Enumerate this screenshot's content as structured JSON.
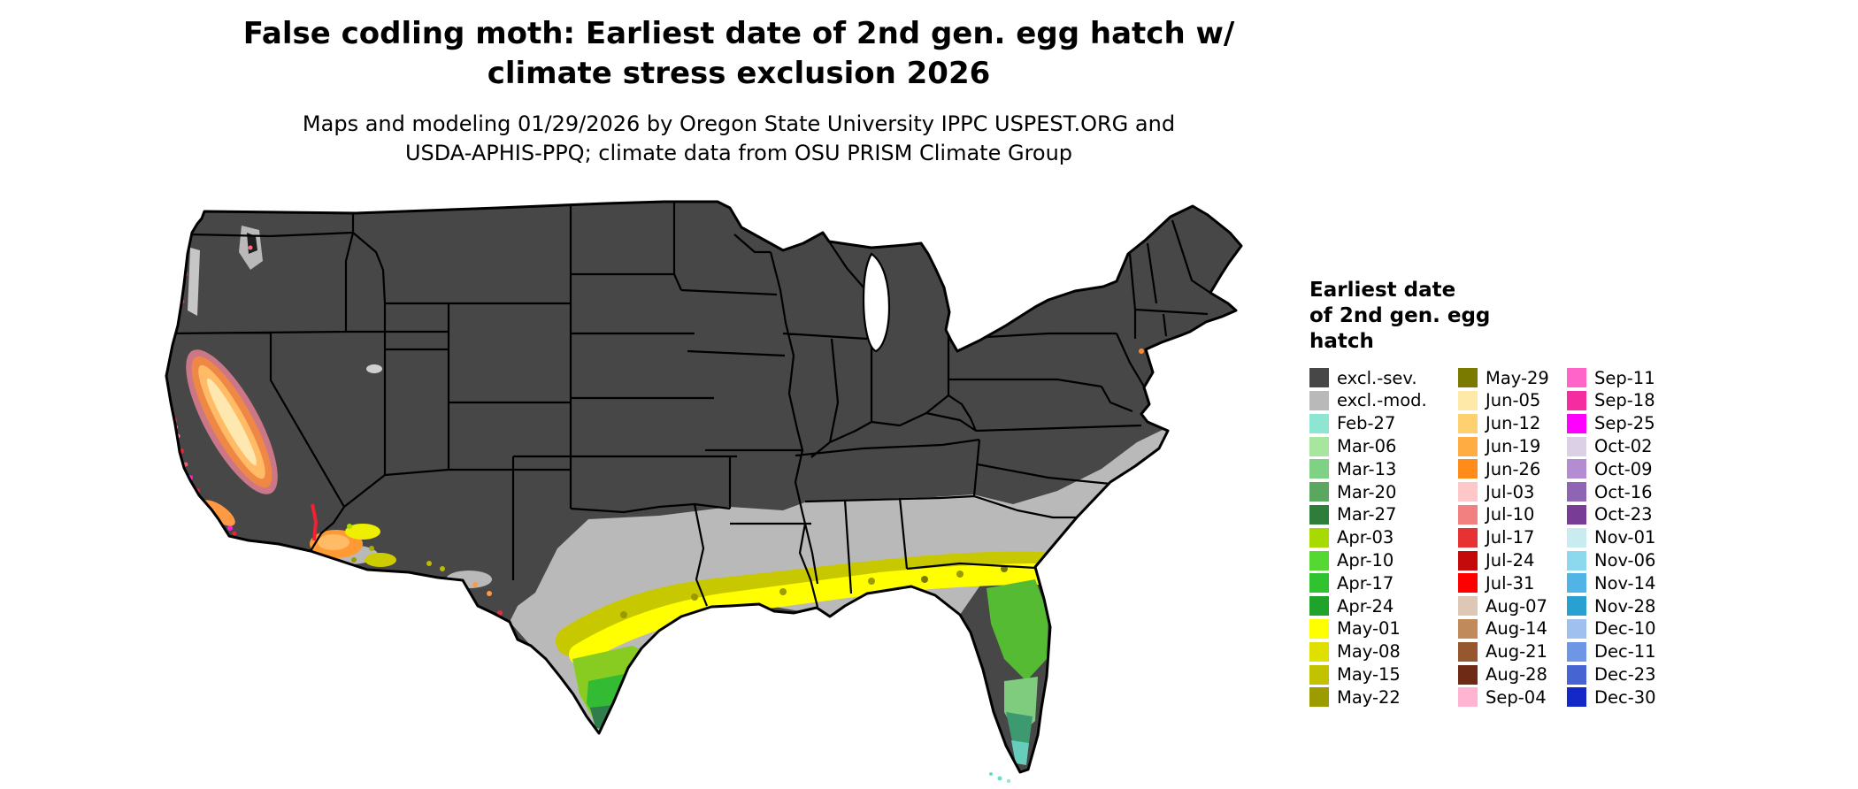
{
  "title": {
    "line1": "False codling moth: Earliest date of 2nd gen. egg hatch w/",
    "line2": "climate stress exclusion 2026"
  },
  "subtitle": {
    "line1": "Maps and modeling 01/29/2026 by Oregon State University IPPC USPEST.ORG and",
    "line2": "USDA-APHIS-PPQ; climate data from OSU PRISM Climate Group"
  },
  "map": {
    "name": "Contiguous United States earliest egg-hatch choropleth",
    "colors": {
      "excl_sev": "#474747",
      "excl_mod": "#b9b9b9",
      "water": "#ffffff",
      "border": "#000000"
    }
  },
  "legend": {
    "title_lines": [
      "Earliest date",
      "of 2nd gen. egg",
      "hatch"
    ],
    "columns": [
      {
        "items": [
          {
            "label": "excl.-sev.",
            "color": "#474747"
          },
          {
            "label": "excl.-mod.",
            "color": "#b9b9b9"
          },
          {
            "label": "Feb-27",
            "color": "#8ee6d2"
          },
          {
            "label": "Mar-06",
            "color": "#a8e6a0"
          },
          {
            "label": "Mar-13",
            "color": "#7fd184"
          },
          {
            "label": "Mar-20",
            "color": "#5aa85f"
          },
          {
            "label": "Mar-27",
            "color": "#2f7d3b"
          },
          {
            "label": "Apr-03",
            "color": "#a8d900"
          },
          {
            "label": "Apr-10",
            "color": "#55d932"
          },
          {
            "label": "Apr-17",
            "color": "#2fc42f"
          },
          {
            "label": "Apr-24",
            "color": "#1fa32a"
          },
          {
            "label": "May-01",
            "color": "#ffff00"
          },
          {
            "label": "May-08",
            "color": "#e0e000"
          },
          {
            "label": "May-15",
            "color": "#c2c200"
          },
          {
            "label": "May-22",
            "color": "#9c9c00"
          }
        ]
      },
      {
        "items": [
          {
            "label": "May-29",
            "color": "#7a7a00"
          },
          {
            "label": "Jun-05",
            "color": "#ffe9a8"
          },
          {
            "label": "Jun-12",
            "color": "#ffd070"
          },
          {
            "label": "Jun-19",
            "color": "#ffad42"
          },
          {
            "label": "Jun-26",
            "color": "#ff8c1a"
          },
          {
            "label": "Jul-03",
            "color": "#ffc8c8"
          },
          {
            "label": "Jul-10",
            "color": "#f28080"
          },
          {
            "label": "Jul-17",
            "color": "#e63232"
          },
          {
            "label": "Jul-24",
            "color": "#c40a0a"
          },
          {
            "label": "Jul-31",
            "color": "#ff0000"
          },
          {
            "label": "Aug-07",
            "color": "#dcc8b4"
          },
          {
            "label": "Aug-14",
            "color": "#c08a5a"
          },
          {
            "label": "Aug-21",
            "color": "#96562e"
          },
          {
            "label": "Aug-28",
            "color": "#6e2a14"
          },
          {
            "label": "Sep-04",
            "color": "#ffb4d2"
          }
        ]
      },
      {
        "items": [
          {
            "label": "Sep-11",
            "color": "#ff64c8"
          },
          {
            "label": "Sep-18",
            "color": "#f52ba0"
          },
          {
            "label": "Sep-25",
            "color": "#ff00ff"
          },
          {
            "label": "Oct-02",
            "color": "#dcd0e6"
          },
          {
            "label": "Oct-09",
            "color": "#b48cd2"
          },
          {
            "label": "Oct-16",
            "color": "#9064b4"
          },
          {
            "label": "Oct-23",
            "color": "#783c96"
          },
          {
            "label": "Nov-01",
            "color": "#c8ecf0"
          },
          {
            "label": "Nov-06",
            "color": "#8cd8ec"
          },
          {
            "label": "Nov-14",
            "color": "#50b4e6"
          },
          {
            "label": "Nov-28",
            "color": "#28a0d2"
          },
          {
            "label": "Dec-10",
            "color": "#a0c0f0"
          },
          {
            "label": "Dec-11",
            "color": "#6e96e6"
          },
          {
            "label": "Dec-23",
            "color": "#4664d2"
          },
          {
            "label": "Dec-30",
            "color": "#1428c8"
          }
        ]
      }
    ]
  }
}
